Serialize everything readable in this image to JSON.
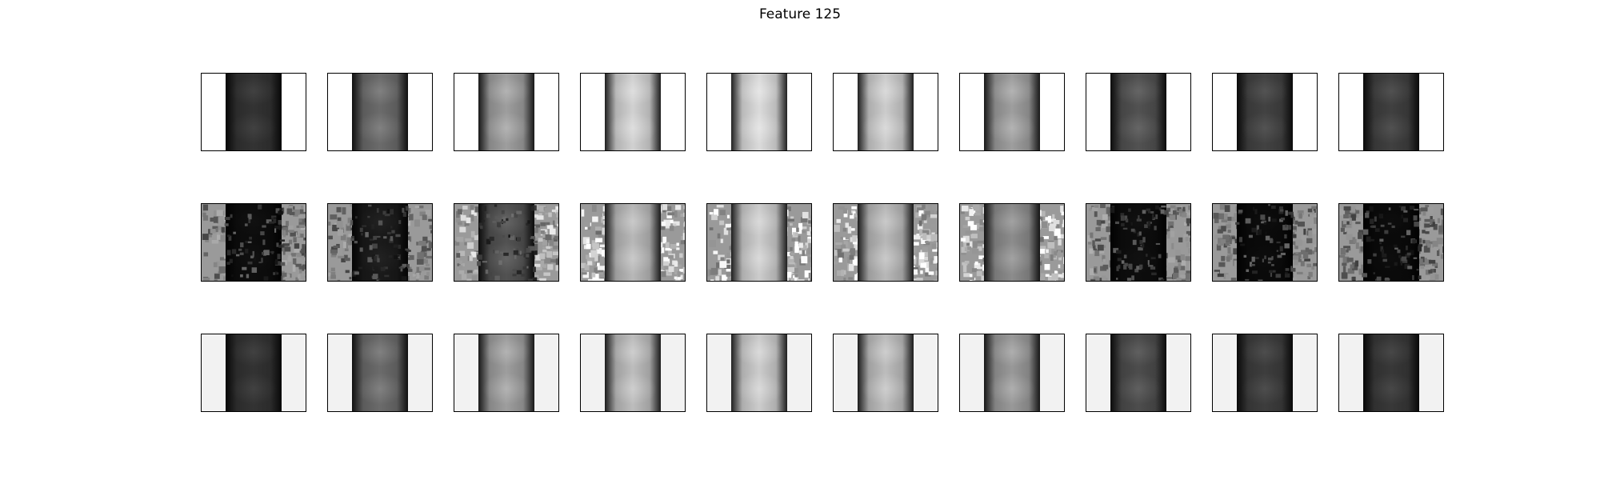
{
  "figure": {
    "title": "Feature 125"
  },
  "grid": {
    "rows": [
      {
        "background": "#ffffff",
        "style": "smooth",
        "panels": [
          {
            "brightness": 0.2
          },
          {
            "brightness": 0.42
          },
          {
            "brightness": 0.62
          },
          {
            "brightness": 0.82
          },
          {
            "brightness": 0.86
          },
          {
            "brightness": 0.8
          },
          {
            "brightness": 0.62
          },
          {
            "brightness": 0.32
          },
          {
            "brightness": 0.26
          },
          {
            "brightness": 0.25
          }
        ]
      },
      {
        "background": "#9a9a9a",
        "style": "noisy",
        "panels": [
          {
            "brightness": 0.05,
            "side_brightness": 0.6
          },
          {
            "brightness": 0.1,
            "side_brightness": 0.6
          },
          {
            "brightness": 0.32,
            "side_brightness": 0.8
          },
          {
            "brightness": 0.72,
            "side_brightness": 0.93
          },
          {
            "brightness": 0.8,
            "side_brightness": 0.95
          },
          {
            "brightness": 0.72,
            "side_brightness": 0.94
          },
          {
            "brightness": 0.55,
            "side_brightness": 0.94
          },
          {
            "brightness": 0.05,
            "side_brightness": 0.6
          },
          {
            "brightness": 0.04,
            "side_brightness": 0.55
          },
          {
            "brightness": 0.04,
            "side_brightness": 0.55
          }
        ]
      },
      {
        "background": "#f2f2f2",
        "style": "smooth",
        "panels": [
          {
            "brightness": 0.2
          },
          {
            "brightness": 0.42
          },
          {
            "brightness": 0.62
          },
          {
            "brightness": 0.74
          },
          {
            "brightness": 0.8
          },
          {
            "brightness": 0.74
          },
          {
            "brightness": 0.6
          },
          {
            "brightness": 0.3
          },
          {
            "brightness": 0.24
          },
          {
            "brightness": 0.22
          }
        ]
      }
    ]
  }
}
